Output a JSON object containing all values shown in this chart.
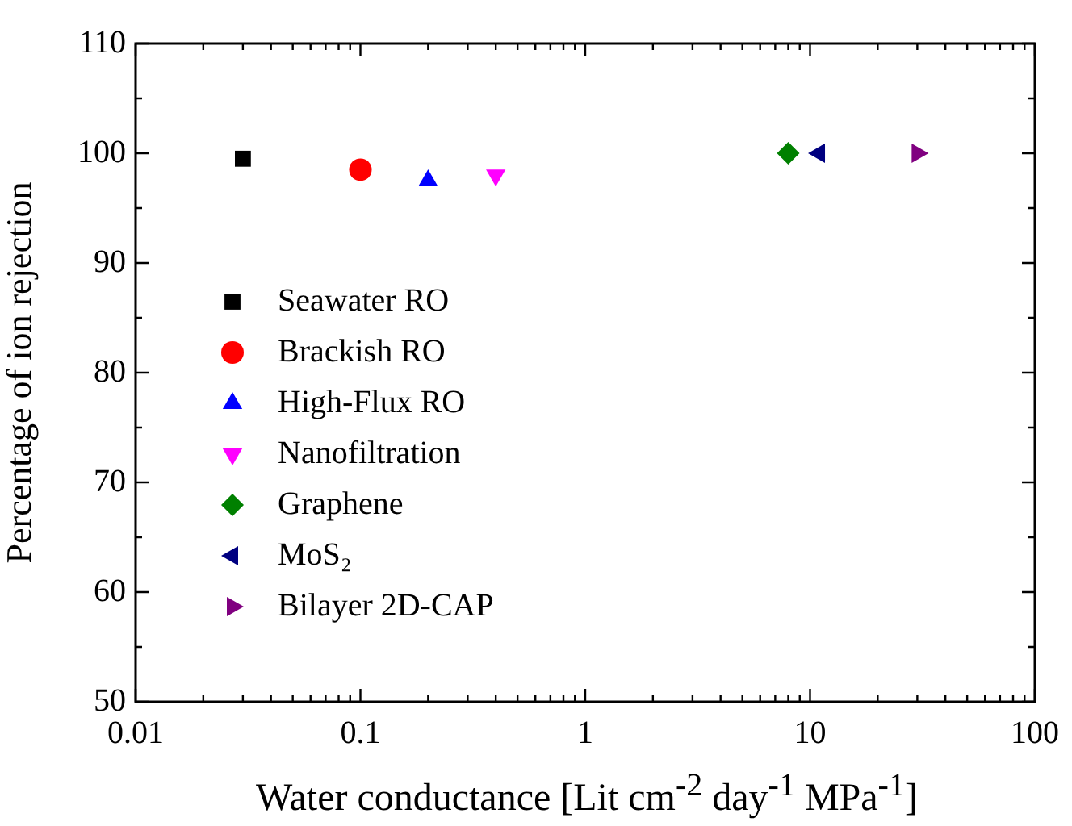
{
  "chart_data": {
    "type": "scatter",
    "xlabel": "Water conductance [Lit cm$^{-2}$ day$^{-1}$ MPa$^{-1}$]",
    "ylabel": "Percentage of ion rejection",
    "log": "x",
    "legend": "left",
    "xlim": [
      0.01,
      100
    ],
    "xticks": [
      0.01,
      {
        "value": 0.02,
        "label": null
      },
      {
        "value": 0.03,
        "label": null
      },
      {
        "value": 0.04,
        "label": null
      },
      {
        "value": 0.05,
        "label": null
      },
      {
        "value": 0.06,
        "label": null
      },
      {
        "value": 0.07,
        "label": null
      },
      {
        "value": 0.08,
        "label": null
      },
      {
        "value": 0.09,
        "label": null
      },
      0.1,
      {
        "value": 0.2,
        "label": null
      },
      {
        "value": 0.3,
        "label": null
      },
      {
        "value": 0.4,
        "label": null
      },
      {
        "value": 0.5,
        "label": null
      },
      {
        "value": 0.6,
        "label": null
      },
      {
        "value": 0.7,
        "label": null
      },
      {
        "value": 0.8,
        "label": null
      },
      {
        "value": 0.9,
        "label": null
      },
      1,
      {
        "value": 2,
        "label": null
      },
      {
        "value": 3,
        "label": null
      },
      {
        "value": 4,
        "label": null
      },
      {
        "value": 5,
        "label": null
      },
      {
        "value": 6,
        "label": null
      },
      {
        "value": 7,
        "label": null
      },
      {
        "value": 8,
        "label": null
      },
      {
        "value": 9,
        "label": null
      },
      10,
      {
        "value": 20,
        "label": null
      },
      {
        "value": 30,
        "label": null
      },
      {
        "value": 40,
        "label": null
      },
      {
        "value": 50,
        "label": null
      },
      {
        "value": 60,
        "label": null
      },
      {
        "value": 70,
        "label": null
      },
      {
        "value": 80,
        "label": null
      },
      {
        "value": 90,
        "label": null
      },
      100
    ],
    "ylim": [
      50,
      110
    ],
    "yticks": [
      50,
      {
        "value": 55,
        "label": null
      },
      60,
      {
        "value": 65,
        "label": null
      },
      70,
      {
        "value": 75,
        "label": null
      },
      80,
      {
        "value": 85,
        "label": null
      },
      90,
      {
        "value": 95,
        "label": null
      },
      100,
      {
        "value": 105,
        "label": null
      },
      110
    ],
    "series": [
      {
        "name": "Seawater RO",
        "color": "#000000",
        "marker": "square",
        "x": [
          0.03
        ],
        "values": [
          99.5
        ]
      },
      {
        "name": "Brackish RO",
        "color": "#ff0000",
        "marker": "circle",
        "x": [
          0.1
        ],
        "values": [
          98.5
        ]
      },
      {
        "name": "High-Flux RO",
        "color": "#0000ff",
        "marker": "triangle",
        "x": [
          0.2
        ],
        "values": [
          97.5
        ]
      },
      {
        "name": "Nanofiltration",
        "color": "#ff00ff",
        "marker": "triangle-down",
        "x": [
          0.4
        ],
        "values": [
          98
        ]
      },
      {
        "name": "Graphene",
        "color": "#008000",
        "marker": "diamond",
        "x": [
          8
        ],
        "values": [
          100
        ]
      },
      {
        "name": "MoS₂",
        "color": "#000080",
        "marker": "triangle-left",
        "x": [
          11
        ],
        "values": [
          100
        ]
      },
      {
        "name": "Bilayer 2D-CAP",
        "color": "#800080",
        "marker": "triangle-right",
        "x": [
          30
        ],
        "values": [
          100
        ]
      }
    ]
  }
}
